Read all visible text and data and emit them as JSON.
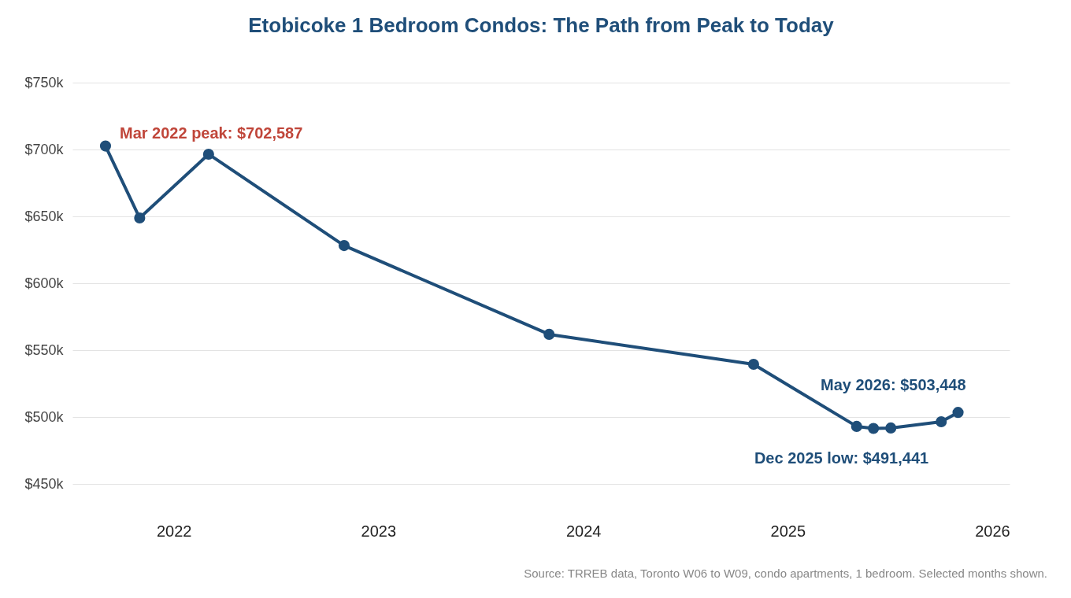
{
  "chart_data": {
    "type": "line",
    "title": "Etobicoke 1 Bedroom Condos: The Path from Peak to Today",
    "x": [
      "2022-03",
      "2022-05",
      "2022-09",
      "2023-05",
      "2024-05",
      "2025-05",
      "2025-11",
      "2025-12",
      "2026-01",
      "2026-04",
      "2026-05"
    ],
    "series": [
      {
        "color": "#1f4e79",
        "values": [
          702587,
          648800,
          696500,
          628200,
          561800,
          539400,
          493000,
          491441,
          491800,
          496500,
          503448
        ]
      }
    ],
    "xlim": [
      "2022-01",
      "2026-08"
    ],
    "xticks": [
      {
        "value": "2022-07",
        "label": "2022"
      },
      {
        "value": "2023-07",
        "label": "2023"
      },
      {
        "value": "2024-07",
        "label": "2024"
      },
      {
        "value": "2025-07",
        "label": "2025"
      },
      {
        "value": "2026-07",
        "label": "2026"
      }
    ],
    "ylim": [
      450000,
      750000
    ],
    "yticks": [
      {
        "value": 450000,
        "label": "$450k"
      },
      {
        "value": 500000,
        "label": "$500k"
      },
      {
        "value": 550000,
        "label": "$550k"
      },
      {
        "value": 600000,
        "label": "$600k"
      },
      {
        "value": 650000,
        "label": "$650k"
      },
      {
        "value": 700000,
        "label": "$700k"
      },
      {
        "value": 750000,
        "label": "$750k"
      }
    ],
    "grid": "y",
    "marker": "circle",
    "line_style": "solid",
    "annotations": [
      {
        "text": "Mar 2022 peak: $702,587",
        "x": "2022-03",
        "y": 702587
      },
      {
        "text": "May 2026: $503,448",
        "x": "2026-05",
        "y": 503448
      },
      {
        "text": "Dec 2025 low: $491,441",
        "x": "2025-12",
        "y": 491441
      },
      "Source: TRREB data, Toronto W06 to W09, condo apartments, 1 bedroom. Selected months shown."
    ]
  }
}
